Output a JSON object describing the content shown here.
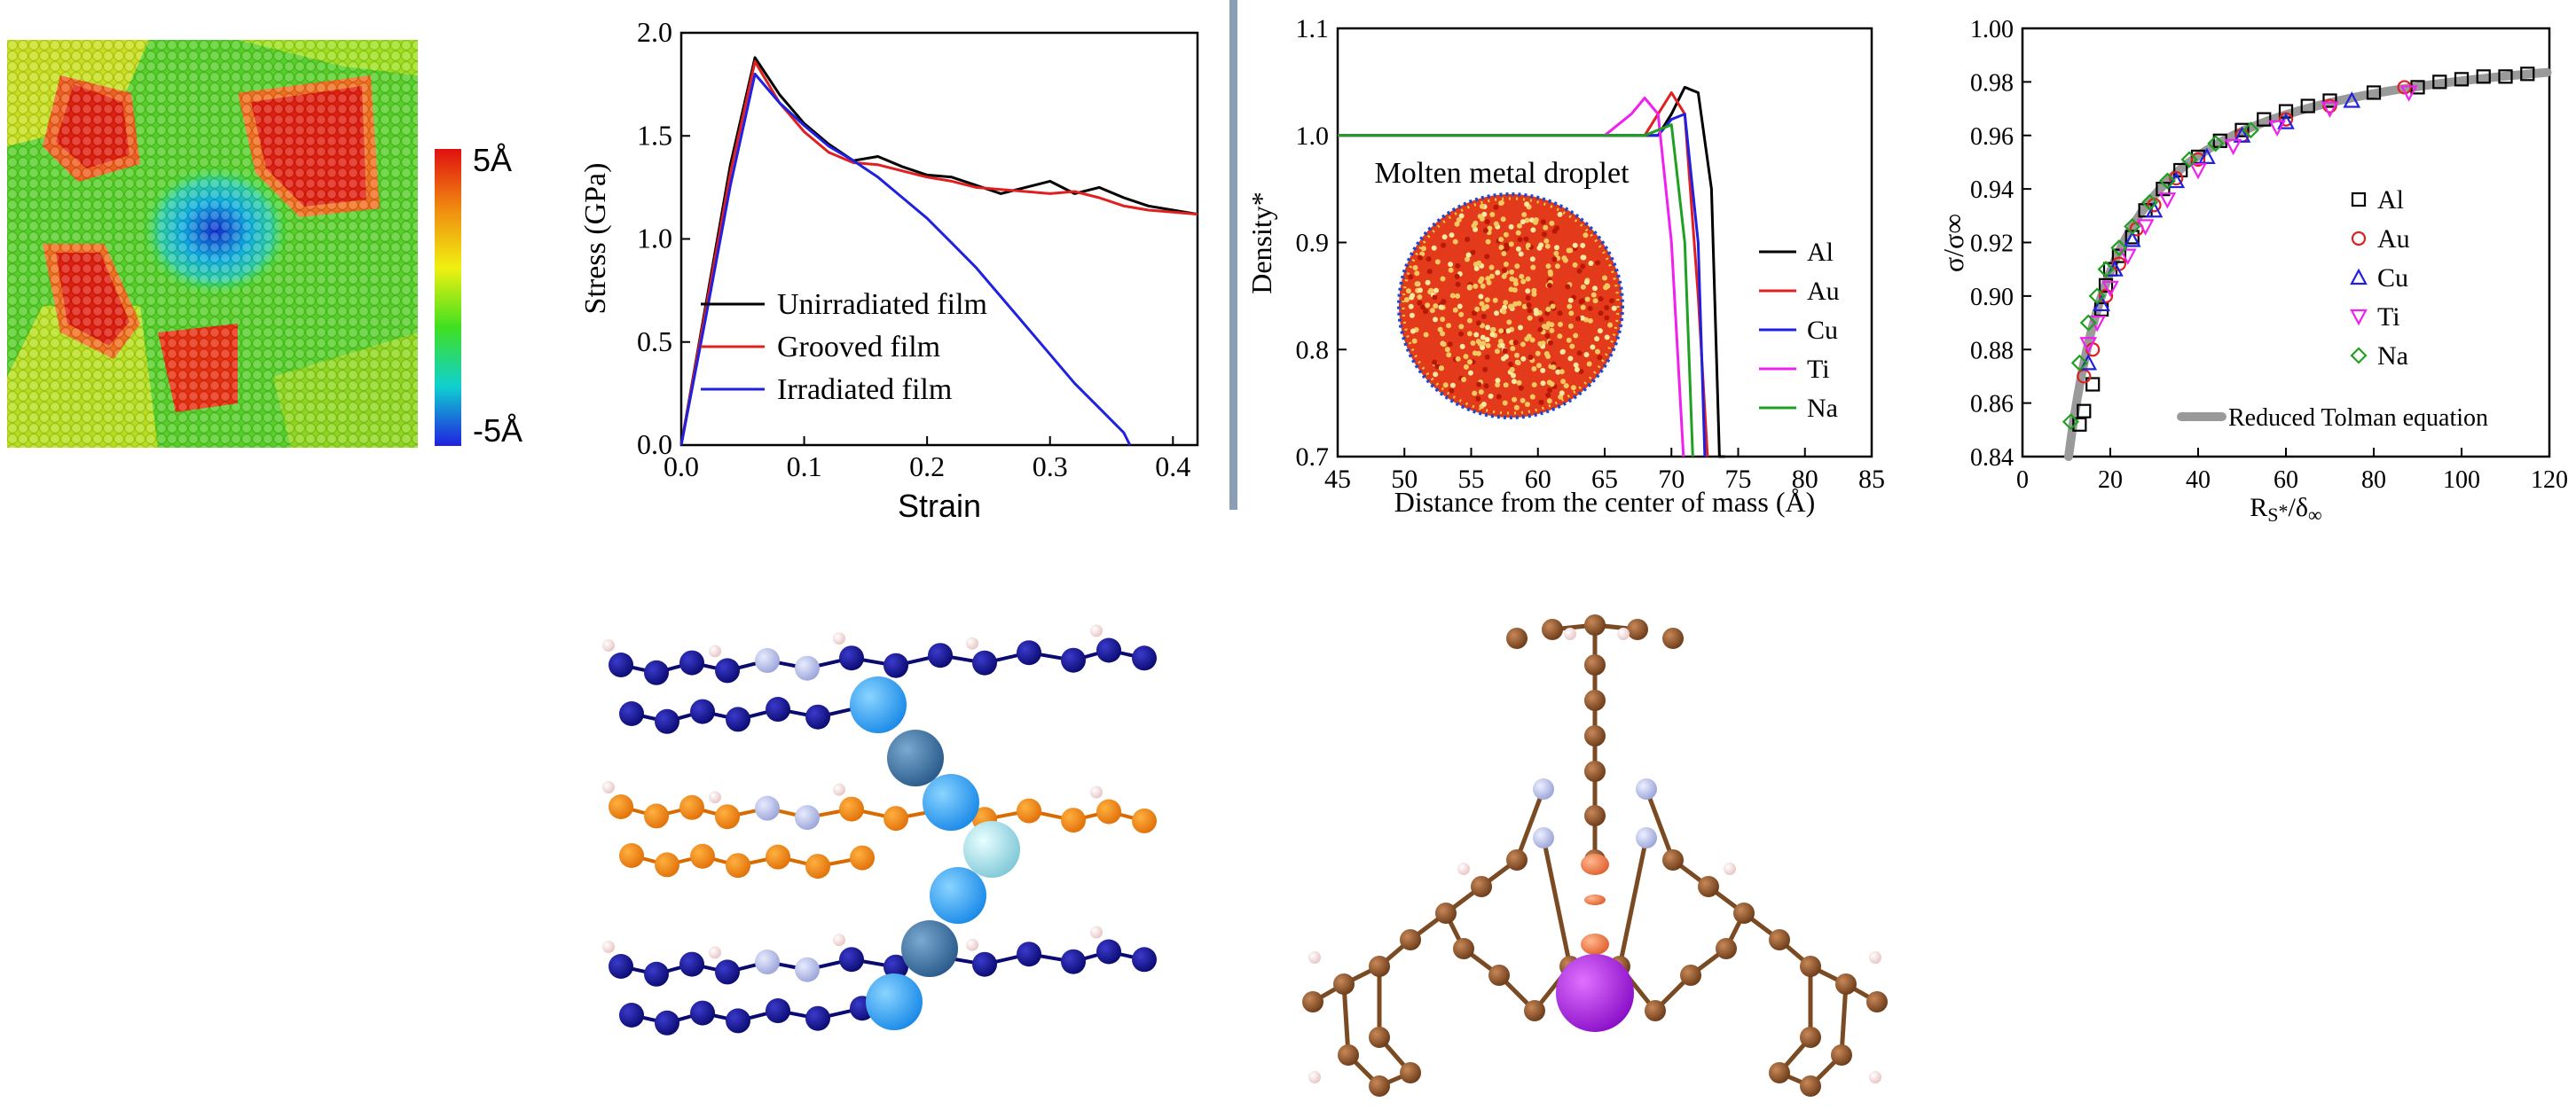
{
  "colorbar": {
    "max_label": "5Å",
    "min_label": "-5Å",
    "stops": [
      "#e01010",
      "#f08a10",
      "#f0f010",
      "#40e020",
      "#10d0d0",
      "#2020e0"
    ]
  },
  "colors": {
    "divider": "#8c9eb4",
    "black": "#000000",
    "red": "#e02020",
    "blue": "#2020e0",
    "magenta": "#f020f0",
    "green": "#20a020",
    "gray": "#9a9a9a"
  },
  "inset_label": "Molten metal droplet",
  "chart_data": [
    {
      "type": "line",
      "xlabel": "Strain",
      "ylabel": "Stress (GPa)",
      "xlim": [
        0.0,
        0.42
      ],
      "ylim": [
        0.0,
        2.0
      ],
      "xticks": [
        "0.0",
        "0.1",
        "0.2",
        "0.3",
        "0.4"
      ],
      "yticks": [
        "0.0",
        "0.5",
        "1.0",
        "1.5",
        "2.0"
      ],
      "legend_position": "bottom-left",
      "series": [
        {
          "name": "Unirradiated film",
          "color": "#000000",
          "x": [
            0,
            0.02,
            0.04,
            0.06,
            0.08,
            0.1,
            0.12,
            0.14,
            0.16,
            0.18,
            0.2,
            0.22,
            0.24,
            0.26,
            0.28,
            0.3,
            0.32,
            0.34,
            0.36,
            0.38,
            0.4,
            0.42
          ],
          "y": [
            0,
            0.68,
            1.36,
            1.88,
            1.7,
            1.56,
            1.46,
            1.38,
            1.4,
            1.35,
            1.31,
            1.3,
            1.26,
            1.22,
            1.25,
            1.28,
            1.22,
            1.25,
            1.2,
            1.16,
            1.14,
            1.12
          ]
        },
        {
          "name": "Grooved film",
          "color": "#e02020",
          "x": [
            0,
            0.02,
            0.04,
            0.06,
            0.08,
            0.1,
            0.12,
            0.14,
            0.16,
            0.18,
            0.2,
            0.22,
            0.24,
            0.26,
            0.28,
            0.3,
            0.32,
            0.34,
            0.36,
            0.38,
            0.4,
            0.42
          ],
          "y": [
            0,
            0.66,
            1.32,
            1.86,
            1.66,
            1.52,
            1.42,
            1.37,
            1.36,
            1.33,
            1.3,
            1.28,
            1.25,
            1.24,
            1.23,
            1.22,
            1.23,
            1.2,
            1.16,
            1.14,
            1.13,
            1.12
          ]
        },
        {
          "name": "Irradiated film",
          "color": "#2020e0",
          "x": [
            0,
            0.02,
            0.04,
            0.06,
            0.08,
            0.1,
            0.12,
            0.14,
            0.16,
            0.18,
            0.2,
            0.22,
            0.24,
            0.26,
            0.28,
            0.3,
            0.32,
            0.34,
            0.36,
            0.365
          ],
          "y": [
            0,
            0.62,
            1.26,
            1.8,
            1.66,
            1.55,
            1.45,
            1.38,
            1.3,
            1.2,
            1.1,
            0.98,
            0.86,
            0.72,
            0.58,
            0.44,
            0.3,
            0.18,
            0.06,
            0
          ]
        }
      ]
    },
    {
      "type": "line",
      "xlabel": "Distance from the center of mass (Å)",
      "ylabel": "Density*",
      "xlim": [
        45,
        85
      ],
      "ylim": [
        0.7,
        1.1
      ],
      "xticks": [
        "45",
        "50",
        "55",
        "60",
        "65",
        "70",
        "75",
        "80",
        "85"
      ],
      "yticks": [
        "0.7",
        "0.8",
        "0.9",
        "1.0",
        "1.1"
      ],
      "legend_position": "right",
      "series": [
        {
          "name": "Al",
          "color": "#000000",
          "x": [
            45,
            69,
            70,
            71,
            72,
            73,
            73.6,
            74
          ],
          "y": [
            1.0,
            1.0,
            1.02,
            1.045,
            1.04,
            0.95,
            0.7,
            0.7
          ]
        },
        {
          "name": "Au",
          "color": "#e02020",
          "x": [
            45,
            68,
            69,
            70,
            71,
            72,
            72.7
          ],
          "y": [
            1.0,
            1.0,
            1.02,
            1.04,
            1.02,
            0.85,
            0.7
          ]
        },
        {
          "name": "Cu",
          "color": "#2020e0",
          "x": [
            45,
            69,
            70,
            71,
            72,
            72.5
          ],
          "y": [
            1.0,
            1.0,
            1.015,
            1.02,
            0.9,
            0.7
          ]
        },
        {
          "name": "Ti",
          "color": "#f020f0",
          "x": [
            45,
            65,
            67,
            68,
            69,
            70,
            70.9
          ],
          "y": [
            1.0,
            1.0,
            1.02,
            1.035,
            1.02,
            0.9,
            0.7
          ]
        },
        {
          "name": "Na",
          "color": "#20a020",
          "x": [
            45,
            68,
            69,
            70,
            71,
            71.6
          ],
          "y": [
            1.0,
            1.0,
            1.005,
            1.01,
            0.9,
            0.7
          ]
        }
      ]
    },
    {
      "type": "scatter",
      "xlabel": "R",
      "ylabel": "σ/σ∞",
      "xlim": [
        0,
        120
      ],
      "ylim": [
        0.84,
        1.0
      ],
      "xticks": [
        "0",
        "20",
        "40",
        "60",
        "80",
        "100",
        "120"
      ],
      "yticks": [
        "0.84",
        "0.86",
        "0.88",
        "0.90",
        "0.92",
        "0.94",
        "0.96",
        "0.98",
        "1.00"
      ],
      "legend_position": "right",
      "series": [
        {
          "name": "Al",
          "color": "#000000",
          "marker": "square",
          "x": [
            13,
            14,
            16,
            18,
            19,
            20,
            22,
            25,
            28,
            32,
            36,
            40,
            45,
            50,
            55,
            60,
            65,
            70,
            80,
            90,
            95,
            100,
            105,
            110,
            115
          ],
          "y": [
            0.852,
            0.857,
            0.867,
            0.895,
            0.904,
            0.91,
            0.915,
            0.922,
            0.932,
            0.94,
            0.947,
            0.952,
            0.958,
            0.962,
            0.966,
            0.969,
            0.971,
            0.973,
            0.976,
            0.978,
            0.98,
            0.981,
            0.982,
            0.982,
            0.983
          ]
        },
        {
          "name": "Au",
          "color": "#e02020",
          "marker": "circle",
          "x": [
            14,
            16,
            19,
            22,
            26,
            30,
            35,
            40,
            50,
            60,
            70,
            87
          ],
          "y": [
            0.87,
            0.88,
            0.9,
            0.912,
            0.925,
            0.934,
            0.944,
            0.951,
            0.96,
            0.966,
            0.971,
            0.978
          ]
        },
        {
          "name": "Cu",
          "color": "#2020e0",
          "marker": "triangle",
          "x": [
            15,
            18,
            21,
            25,
            30,
            35,
            42,
            50,
            60,
            75
          ],
          "y": [
            0.875,
            0.897,
            0.91,
            0.921,
            0.932,
            0.943,
            0.952,
            0.96,
            0.965,
            0.973
          ]
        },
        {
          "name": "Ti",
          "color": "#f020f0",
          "marker": "triangle-down",
          "x": [
            15,
            17,
            20,
            24,
            28,
            33,
            40,
            48,
            58,
            70,
            88
          ],
          "y": [
            0.882,
            0.89,
            0.903,
            0.915,
            0.926,
            0.936,
            0.947,
            0.956,
            0.963,
            0.97,
            0.976
          ]
        },
        {
          "name": "Na",
          "color": "#20a020",
          "marker": "diamond",
          "x": [
            11,
            13,
            15,
            17,
            19,
            22,
            25,
            29,
            33,
            38,
            44,
            52
          ],
          "y": [
            0.853,
            0.875,
            0.89,
            0.9,
            0.91,
            0.918,
            0.926,
            0.935,
            0.943,
            0.951,
            0.957,
            0.962
          ]
        }
      ],
      "fit": {
        "name": "Reduced Tolman equation",
        "color": "#9a9a9a",
        "xmin": 9.5,
        "xmax": 120
      }
    }
  ]
}
